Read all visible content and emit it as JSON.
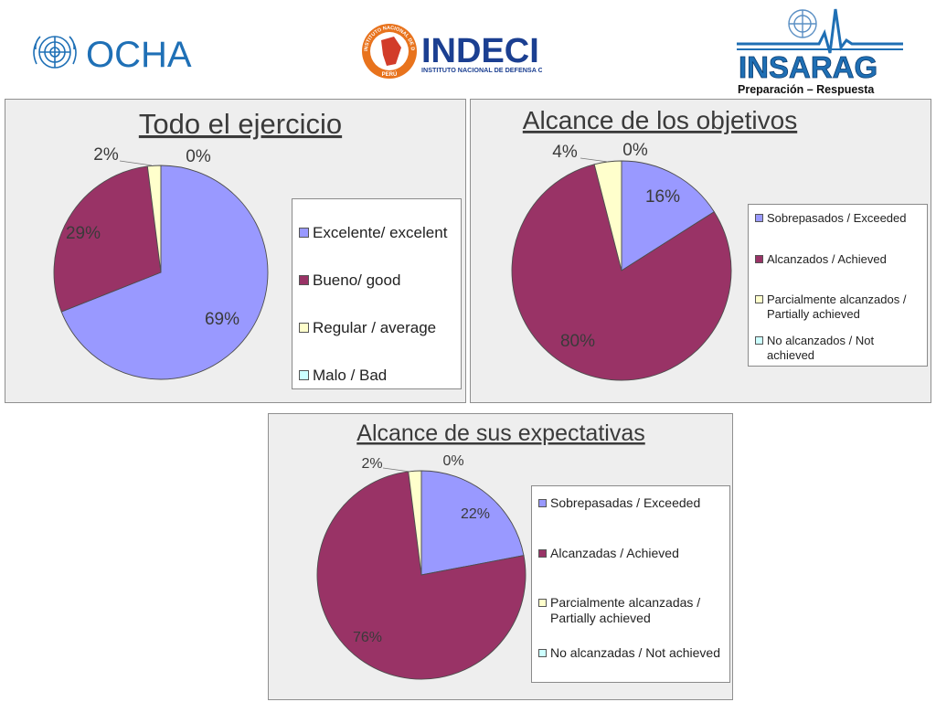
{
  "logos": {
    "ocha": {
      "text": "OCHA",
      "color": "#1f70b6"
    },
    "indeci": {
      "text": "INDECI",
      "subtitle": "INSTITUTO NACIONAL DE DEFENSA CIVIL",
      "ring_text": "INSTITUTO NACIONAL DE DEFENSA CIVIL",
      "country": "PERÚ",
      "color": "#1b3f91",
      "accent": "#e8731d"
    },
    "insarag": {
      "text": "INSARAG",
      "subtitle": "Preparación – Respuesta",
      "color": "#1f6fb4"
    }
  },
  "colors": {
    "slice": [
      "#9999ff",
      "#993366",
      "#ffffcc",
      "#ccffff"
    ]
  },
  "chart_data": [
    {
      "type": "pie",
      "title": "Todo el ejercicio",
      "categories": [
        "Excelente/ excelent",
        "Bueno/ good",
        "Regular / average",
        "Malo / Bad"
      ],
      "values": [
        69,
        29,
        2,
        0
      ],
      "data_labels": [
        "69%",
        "29%",
        "2%",
        "0%"
      ],
      "legend": "right"
    },
    {
      "type": "pie",
      "title": "Alcance de los objetivos",
      "categories": [
        "Sobrepasados / Exceeded",
        "Alcanzados / Achieved",
        "Parcialmente alcanzados / Partially achieved",
        "No alcanzados / Not achieved"
      ],
      "values": [
        16,
        80,
        4,
        0
      ],
      "data_labels": [
        "16%",
        "80%",
        "4%",
        "0%"
      ],
      "legend": "right"
    },
    {
      "type": "pie",
      "title": "Alcance de sus expectativas",
      "categories": [
        "Sobrepasadas / Exceeded",
        "Alcanzadas / Achieved",
        "Parcialmente alcanzadas  / Partially achieved",
        "No alcanzadas / Not achieved"
      ],
      "values": [
        22,
        76,
        2,
        0
      ],
      "data_labels": [
        "22%",
        "76%",
        "2%",
        "0%"
      ],
      "legend": "right"
    }
  ]
}
